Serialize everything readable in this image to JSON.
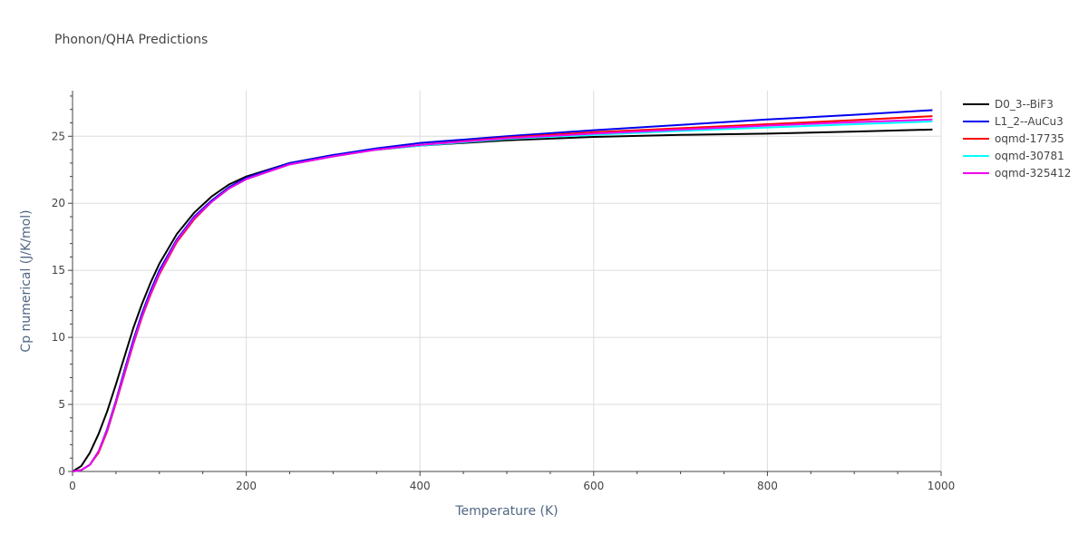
{
  "chart_data": {
    "type": "line",
    "title": "Phonon/QHA Predictions",
    "xlabel": "Temperature (K)",
    "ylabel": "Cp numerical (J/K/mol)",
    "xlim": [
      0,
      1000
    ],
    "ylim": [
      0,
      28.4
    ],
    "xticks": [
      0,
      200,
      400,
      600,
      800,
      1000
    ],
    "yticks": [
      0,
      5,
      10,
      15,
      20,
      25
    ],
    "grid": true,
    "legend_position": "top-right",
    "series": [
      {
        "name": "D0_3--BiF3",
        "color": "#000000",
        "x": [
          0,
          10,
          20,
          30,
          40,
          50,
          60,
          70,
          80,
          90,
          100,
          120,
          140,
          160,
          180,
          200,
          250,
          300,
          350,
          400,
          500,
          600,
          700,
          800,
          900,
          990
        ],
        "y": [
          0,
          0.4,
          1.4,
          2.8,
          4.5,
          6.5,
          8.6,
          10.7,
          12.5,
          14.1,
          15.5,
          17.7,
          19.3,
          20.5,
          21.4,
          22.0,
          23.0,
          23.6,
          24.0,
          24.3,
          24.7,
          24.95,
          25.1,
          25.2,
          25.35,
          25.5
        ]
      },
      {
        "name": "L1_2--AuCu3",
        "color": "#0000ee",
        "x": [
          0,
          10,
          20,
          30,
          40,
          50,
          60,
          70,
          80,
          90,
          100,
          120,
          140,
          160,
          180,
          200,
          250,
          300,
          350,
          400,
          500,
          600,
          700,
          800,
          900,
          990
        ],
        "y": [
          0,
          0.1,
          0.5,
          1.5,
          3.2,
          5.3,
          7.6,
          9.8,
          11.8,
          13.5,
          15.0,
          17.3,
          19.0,
          20.2,
          21.2,
          21.9,
          23.0,
          23.6,
          24.1,
          24.5,
          25.0,
          25.45,
          25.85,
          26.25,
          26.6,
          26.95
        ]
      },
      {
        "name": "oqmd-17735",
        "color": "#ff0000",
        "x": [
          0,
          10,
          20,
          30,
          40,
          50,
          60,
          70,
          80,
          90,
          100,
          120,
          140,
          160,
          180,
          200,
          250,
          300,
          350,
          400,
          500,
          600,
          700,
          800,
          900,
          990
        ],
        "y": [
          0,
          0.1,
          0.5,
          1.4,
          3.0,
          5.1,
          7.3,
          9.5,
          11.5,
          13.2,
          14.7,
          17.1,
          18.8,
          20.1,
          21.1,
          21.8,
          22.9,
          23.5,
          24.0,
          24.35,
          24.9,
          25.3,
          25.6,
          25.9,
          26.2,
          26.5
        ]
      },
      {
        "name": "oqmd-30781",
        "color": "#00ffff",
        "x": [
          0,
          10,
          20,
          30,
          40,
          50,
          60,
          70,
          80,
          90,
          100,
          120,
          140,
          160,
          180,
          200,
          250,
          300,
          350,
          400,
          500,
          600,
          700,
          800,
          900,
          990
        ],
        "y": [
          0,
          0.1,
          0.5,
          1.5,
          3.1,
          5.2,
          7.4,
          9.6,
          11.6,
          13.3,
          14.8,
          17.2,
          18.9,
          20.1,
          21.1,
          21.8,
          22.9,
          23.5,
          24.0,
          24.3,
          24.8,
          25.1,
          25.4,
          25.65,
          25.9,
          26.1
        ]
      },
      {
        "name": "oqmd-325412",
        "color": "#ee00ee",
        "x": [
          0,
          10,
          20,
          30,
          40,
          50,
          60,
          70,
          80,
          90,
          100,
          120,
          140,
          160,
          180,
          200,
          250,
          300,
          350,
          400,
          500,
          600,
          700,
          800,
          900,
          990
        ],
        "y": [
          0,
          0.1,
          0.5,
          1.5,
          3.1,
          5.2,
          7.4,
          9.6,
          11.6,
          13.3,
          14.8,
          17.2,
          18.9,
          20.1,
          21.1,
          21.8,
          22.9,
          23.5,
          24.0,
          24.35,
          24.85,
          25.2,
          25.5,
          25.8,
          26.05,
          26.25
        ]
      }
    ]
  }
}
